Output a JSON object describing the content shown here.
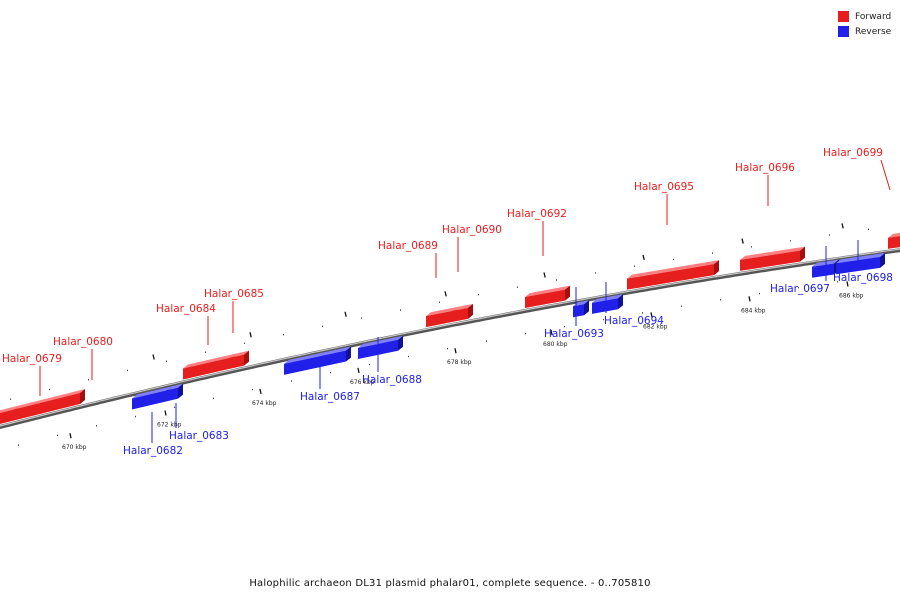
{
  "legend": {
    "forward_label": "Forward",
    "reverse_label": "Reverse",
    "forward_color": "#e61e1e",
    "reverse_color": "#2020e8"
  },
  "caption": "Halophilic archaeon DL31 plasmid phalar01, complete sequence. - 0..705810",
  "ticks": [
    "670 kbp",
    "672 kbp",
    "674 kbp",
    "676 kbp",
    "678 kbp",
    "680 kbp",
    "682 kbp",
    "684 kbp",
    "686 kbp"
  ],
  "genes": [
    {
      "name": "Halar_0679",
      "strand": "forward"
    },
    {
      "name": "Halar_0680",
      "strand": "forward"
    },
    {
      "name": "Halar_0682",
      "strand": "reverse"
    },
    {
      "name": "Halar_0683",
      "strand": "reverse"
    },
    {
      "name": "Halar_0684",
      "strand": "forward"
    },
    {
      "name": "Halar_0685",
      "strand": "forward"
    },
    {
      "name": "Halar_0687",
      "strand": "reverse"
    },
    {
      "name": "Halar_0688",
      "strand": "reverse"
    },
    {
      "name": "Halar_0689",
      "strand": "forward"
    },
    {
      "name": "Halar_0690",
      "strand": "forward"
    },
    {
      "name": "Halar_0692",
      "strand": "forward"
    },
    {
      "name": "Halar_0693",
      "strand": "reverse"
    },
    {
      "name": "Halar_0694",
      "strand": "reverse"
    },
    {
      "name": "Halar_0695",
      "strand": "forward"
    },
    {
      "name": "Halar_0696",
      "strand": "forward"
    },
    {
      "name": "Halar_0697",
      "strand": "reverse"
    },
    {
      "name": "Halar_0698",
      "strand": "reverse"
    },
    {
      "name": "Halar_0699",
      "strand": "forward"
    }
  ]
}
